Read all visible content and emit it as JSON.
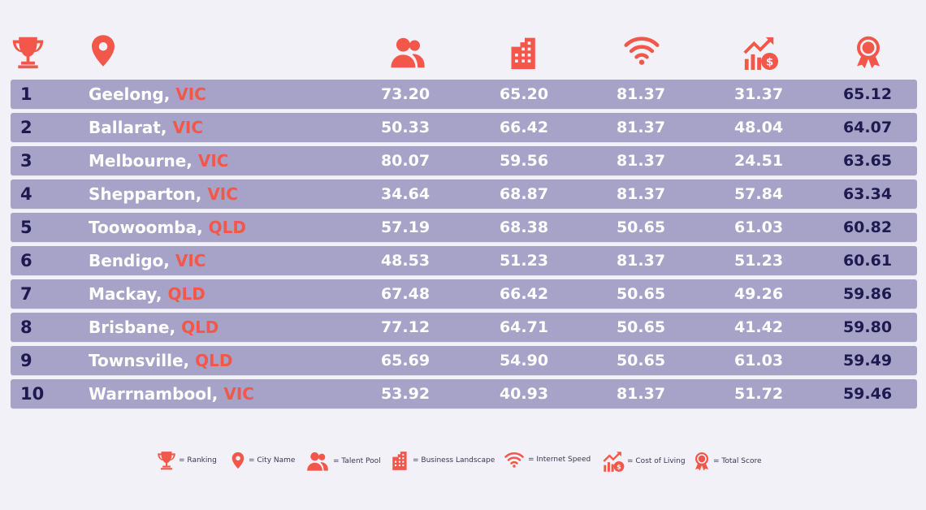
{
  "header": {
    "icons": [
      "trophy-icon",
      "map-pin-icon",
      "people-icon",
      "building-icon",
      "wifi-icon",
      "cost-chart-icon",
      "award-ribbon-icon"
    ]
  },
  "colors": {
    "accent": "#f2574a",
    "row_background": "#a7a3c8",
    "dark_text": "#1e1a4f",
    "page_background": "#f3f1f8"
  },
  "rows": [
    {
      "rank": "1",
      "city": "Geelong,",
      "state": "VIC",
      "talent": "73.20",
      "business": "65.20",
      "internet": "81.37",
      "cost": "31.37",
      "total": "65.12"
    },
    {
      "rank": "2",
      "city": "Ballarat,",
      "state": "VIC",
      "talent": "50.33",
      "business": "66.42",
      "internet": "81.37",
      "cost": "48.04",
      "total": "64.07"
    },
    {
      "rank": "3",
      "city": "Melbourne,",
      "state": "VIC",
      "talent": "80.07",
      "business": "59.56",
      "internet": "81.37",
      "cost": "24.51",
      "total": "63.65"
    },
    {
      "rank": "4",
      "city": "Shepparton,",
      "state": "VIC",
      "talent": "34.64",
      "business": "68.87",
      "internet": "81.37",
      "cost": "57.84",
      "total": "63.34"
    },
    {
      "rank": "5",
      "city": "Toowoomba,",
      "state": "QLD",
      "talent": "57.19",
      "business": "68.38",
      "internet": "50.65",
      "cost": "61.03",
      "total": "60.82"
    },
    {
      "rank": "6",
      "city": "Bendigo,",
      "state": "VIC",
      "talent": "48.53",
      "business": "51.23",
      "internet": "81.37",
      "cost": "51.23",
      "total": "60.61"
    },
    {
      "rank": "7",
      "city": "Mackay,",
      "state": "QLD",
      "talent": "67.48",
      "business": "66.42",
      "internet": "50.65",
      "cost": "49.26",
      "total": "59.86"
    },
    {
      "rank": "8",
      "city": "Brisbane,",
      "state": "QLD",
      "talent": "77.12",
      "business": "64.71",
      "internet": "50.65",
      "cost": "41.42",
      "total": "59.80"
    },
    {
      "rank": "9",
      "city": "Townsville,",
      "state": "QLD",
      "talent": "65.69",
      "business": "54.90",
      "internet": "50.65",
      "cost": "61.03",
      "total": "59.49"
    },
    {
      "rank": "10",
      "city": "Warrnambool,",
      "state": "VIC",
      "talent": "53.92",
      "business": "40.93",
      "internet": "81.37",
      "cost": "51.72",
      "total": "59.46"
    }
  ],
  "legend": {
    "ranking": "= Ranking",
    "city_name": "= City Name",
    "talent_pool": "= Talent Pool",
    "business_landscape": "= Business Landscape",
    "internet_speed": "= Internet Speed",
    "cost_of_living": "= Cost of Living",
    "total_score": "= Total Score"
  }
}
